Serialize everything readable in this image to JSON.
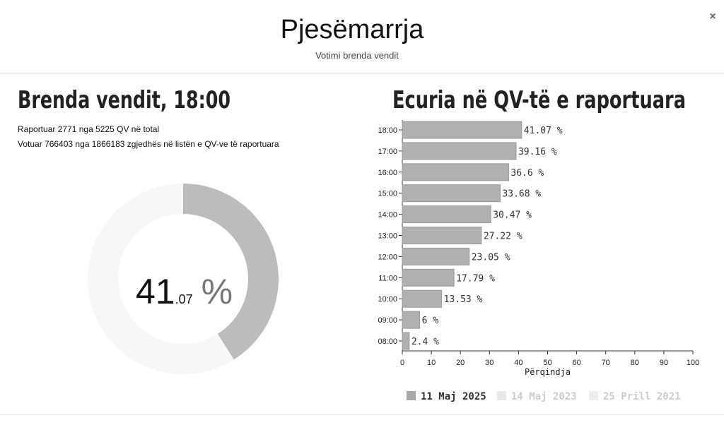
{
  "header": {
    "title": "Pjesëmarrja",
    "subtitle": "Votimi brenda vendit",
    "close": "×"
  },
  "left": {
    "heading": "Brenda vendit, 18:00",
    "lines": [
      "Raportuar 2771 nga 5225 QV në total",
      "Votuar 766403 nga 1866183 zgjedhës në listën e QV-ve të raportuara"
    ]
  },
  "right": {
    "heading": "Ecuria në QV-të e raportuara"
  },
  "chart_data": [
    {
      "type": "donut",
      "values": [
        41.07
      ],
      "color": "#bcbcbc",
      "track_color": "#f8f6f6",
      "center_text": {
        "integer": "41",
        "decimal": ".07",
        "unit": "%"
      }
    },
    {
      "type": "bar",
      "orientation": "horizontal",
      "categories": [
        "18:00",
        "17:00",
        "16:00",
        "15:00",
        "14:00",
        "13:00",
        "12:00",
        "11:00",
        "10:00",
        "09:00",
        "08:00"
      ],
      "series": [
        {
          "name": "11 Maj 2025",
          "color": "#b0b0b0",
          "values": [
            41.07,
            39.16,
            36.6,
            33.68,
            30.47,
            27.22,
            23.05,
            17.79,
            13.53,
            6,
            2.4
          ],
          "value_labels": [
            "41.07 %",
            "39.16 %",
            "36.6 %",
            "33.68 %",
            "30.47 %",
            "27.22 %",
            "23.05 %",
            "17.79 %",
            "13.53 %",
            "6 %",
            "2.4 %"
          ]
        },
        {
          "name": "14 Maj 2023",
          "color": "#e8e8e8",
          "values": [
            null,
            null,
            null,
            null,
            null,
            null,
            null,
            null,
            null,
            null,
            null
          ]
        },
        {
          "name": "25 Prill 2021",
          "color": "#ececec",
          "values": [
            null,
            null,
            null,
            null,
            null,
            null,
            null,
            null,
            null,
            null,
            null
          ]
        }
      ],
      "xlim": [
        0,
        100
      ],
      "xticks": [
        0,
        10,
        20,
        30,
        40,
        50,
        60,
        70,
        80,
        90,
        100
      ],
      "xlabel": "Përqindja",
      "legend": "bottom"
    }
  ]
}
